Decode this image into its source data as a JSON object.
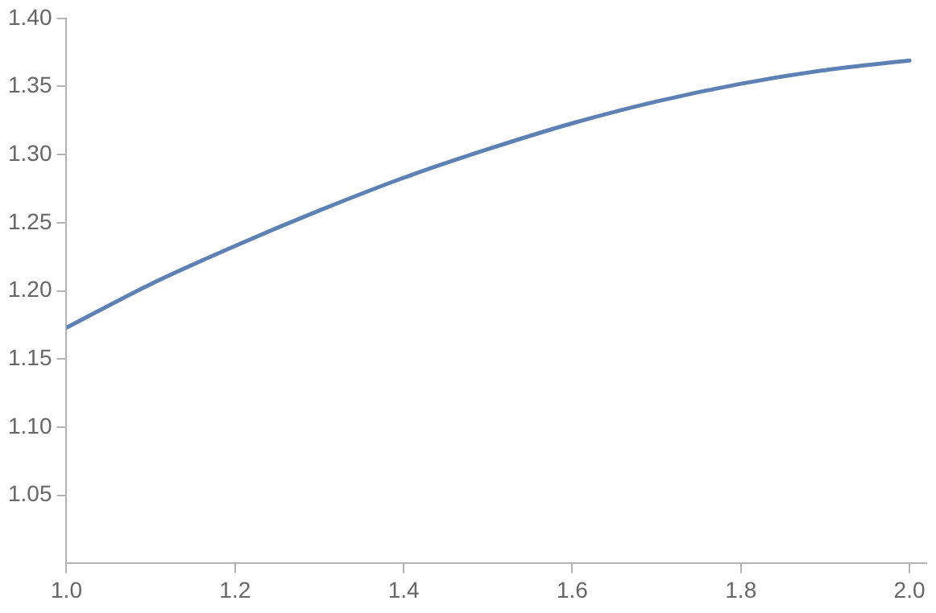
{
  "chart_data": {
    "type": "line",
    "x": [
      1.0,
      1.1,
      1.2,
      1.3,
      1.4,
      1.5,
      1.6,
      1.7,
      1.8,
      1.9,
      2.0
    ],
    "series": [
      {
        "color": "#5e81b5",
        "values": [
          1.173,
          1.205,
          1.233,
          1.259,
          1.283,
          1.304,
          1.323,
          1.339,
          1.352,
          1.362,
          1.369
        ]
      }
    ],
    "xlim": [
      1,
      2.02
    ],
    "ylim": [
      1,
      1.4
    ],
    "xticks": [
      {
        "value": 1,
        "label": "1.0"
      },
      {
        "value": 1.2,
        "label": "1.2"
      },
      {
        "value": 1.4,
        "label": "1.4"
      },
      {
        "value": 1.6,
        "label": "1.6"
      },
      {
        "value": 1.8,
        "label": "1.8"
      },
      {
        "value": 2,
        "label": "2.0"
      }
    ],
    "yticks": [
      {
        "value": 1.05,
        "label": "1.05"
      },
      {
        "value": 1.1,
        "label": "1.10"
      },
      {
        "value": 1.15,
        "label": "1.15"
      },
      {
        "value": 1.2,
        "label": "1.20"
      },
      {
        "value": 1.25,
        "label": "1.25"
      },
      {
        "value": 1.3,
        "label": "1.30"
      },
      {
        "value": 1.35,
        "label": "1.35"
      },
      {
        "value": 1.4,
        "label": "1.40"
      }
    ],
    "grid": false,
    "legend": false,
    "marker": "none",
    "line_style": "solid"
  }
}
